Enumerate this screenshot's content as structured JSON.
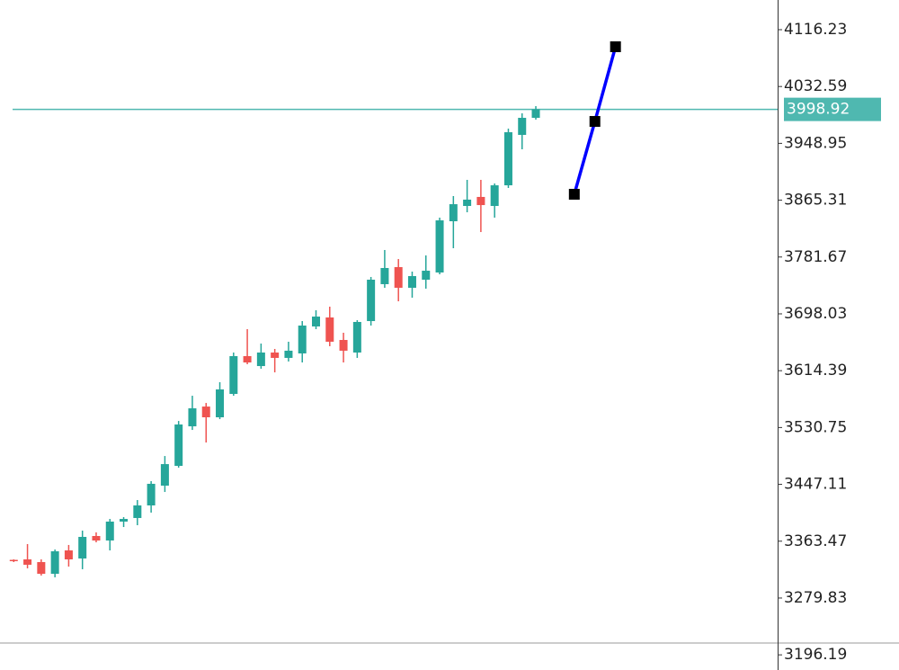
{
  "chart_data": {
    "type": "candlestick",
    "up_color": "#26a69a",
    "down_color": "#ef5350",
    "open": [
      3336.0,
      3336.7,
      3332.7,
      3315.5,
      3349.9,
      3338.0,
      3371.1,
      3364.5,
      3392.3,
      3397.6,
      3416.1,
      3445.2,
      3474.3,
      3532.5,
      3561.6,
      3545.8,
      3580.2,
      3635.8,
      3621.2,
      3641.1,
      3633.2,
      3639.8,
      3679.5,
      3692.7,
      3659.6,
      3641.1,
      3687.4,
      3741.7,
      3766.8,
      3736.4,
      3748.3,
      3758.9,
      3834.3,
      3856.8,
      3870.1,
      3856.8,
      3887.2,
      3961.4,
      3986.5
    ],
    "high": [
      3336.7,
      3359.2,
      3336.7,
      3351.2,
      3357.9,
      3379.0,
      3376.4,
      3396.2,
      3398.9,
      3424.0,
      3451.8,
      3488.8,
      3540.4,
      3577.5,
      3566.9,
      3597.4,
      3641.1,
      3675.5,
      3654.3,
      3646.4,
      3657.0,
      3687.4,
      3703.3,
      3708.6,
      3670.2,
      3688.7,
      3752.3,
      3792.0,
      3778.7,
      3760.2,
      3784.0,
      3839.6,
      3871.4,
      3895.2,
      3895.2,
      3889.9,
      3970.6,
      3993.1,
      4003.7
    ],
    "low": [
      3332.7,
      3323.5,
      3312.9,
      3310.3,
      3326.1,
      3322.2,
      3361.8,
      3349.9,
      3384.3,
      3387.0,
      3405.5,
      3435.9,
      3471.7,
      3527.2,
      3508.7,
      3543.1,
      3577.5,
      3623.9,
      3617.2,
      3611.9,
      3627.9,
      3626.5,
      3675.5,
      3650.4,
      3626.5,
      3633.2,
      3680.8,
      3736.4,
      3716.5,
      3721.8,
      3735.1,
      3756.2,
      3794.6,
      3847.5,
      3818.4,
      3839.6,
      3883.3,
      3940.2,
      3983.9
    ],
    "close": [
      3335.4,
      3328.8,
      3315.5,
      3348.6,
      3336.7,
      3369.8,
      3364.5,
      3392.3,
      3396.2,
      3416.1,
      3447.9,
      3476.9,
      3535.2,
      3559.0,
      3545.8,
      3586.8,
      3635.8,
      3626.5,
      3641.1,
      3633.2,
      3643.8,
      3680.8,
      3694.0,
      3657.0,
      3643.8,
      3686.1,
      3748.3,
      3765.5,
      3736.4,
      3753.6,
      3761.5,
      3835.6,
      3859.4,
      3866.1,
      3858.1,
      3887.2,
      3965.3,
      3986.5,
      3998.9
    ],
    "overlay_line": {
      "color": "#0000ff",
      "x": [
        40.8,
        42.3,
        43.8
      ],
      "values": [
        3874.0,
        3981.2,
        4091.1
      ]
    },
    "price_line": {
      "value": 3998.92,
      "color": "#4fb8b0"
    },
    "xlim": [
      -1,
      55.6
    ],
    "ylim": [
      3173.9,
      4159.9
    ],
    "yticks": [
      4116.23,
      4032.59,
      3948.95,
      3865.31,
      3781.67,
      3698.03,
      3614.39,
      3530.75,
      3447.11,
      3363.47,
      3279.83,
      3196.19
    ]
  }
}
